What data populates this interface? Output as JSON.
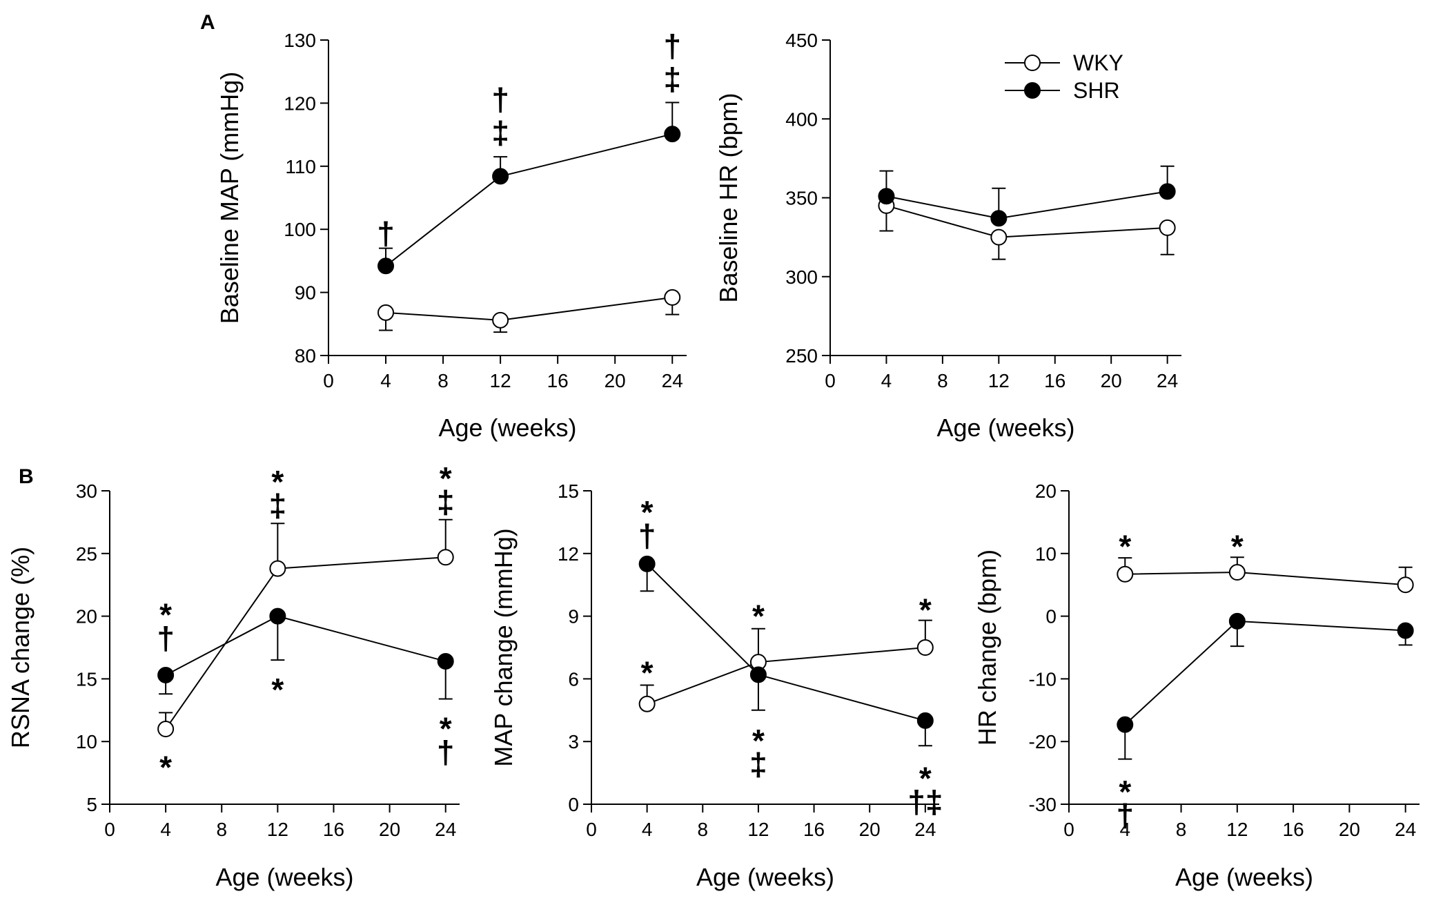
{
  "panel_labels": [
    "A",
    "B"
  ],
  "legend": {
    "wky": {
      "label": "WKY",
      "marker": "open-circle"
    },
    "shr": {
      "label": "SHR",
      "marker": "filled-circle"
    }
  },
  "colors": {
    "line": "#000000",
    "open_fill": "#ffffff",
    "filled_fill": "#000000"
  },
  "chart_data": [
    {
      "type": "line",
      "id": "A-left",
      "panel": "A",
      "ylabel": "Baseline MAP (mmHg)",
      "xlabel": "Age (weeks)",
      "xlim": [
        0,
        25
      ],
      "xticks": [
        0,
        4,
        8,
        12,
        16,
        20,
        24
      ],
      "ylim": [
        80,
        130
      ],
      "yticks": [
        80,
        90,
        100,
        110,
        120,
        130
      ],
      "x": [
        4,
        12,
        24
      ],
      "series": [
        {
          "name": "WKY",
          "values": [
            86.8,
            85.6,
            89.2
          ],
          "errors": [
            2.8,
            1.9,
            2.7
          ],
          "error_dir": "down",
          "marker": "open"
        },
        {
          "name": "SHR",
          "values": [
            94.2,
            108.4,
            115.1
          ],
          "errors": [
            2.8,
            3.1,
            5.0
          ],
          "error_dir": "up",
          "marker": "filled"
        }
      ],
      "annotations": [
        {
          "x": 4,
          "y": 96.5,
          "stack": [
            "†"
          ],
          "dir": "up"
        },
        {
          "x": 12,
          "y": 112.5,
          "stack": [
            "†",
            "‡"
          ],
          "dir": "up"
        },
        {
          "x": 24,
          "y": 121,
          "stack": [
            "†",
            "‡"
          ],
          "dir": "up"
        }
      ]
    },
    {
      "type": "line",
      "id": "A-right",
      "panel": "A",
      "ylabel": "Baseline HR (bpm)",
      "xlabel": "Age (weeks)",
      "xlim": [
        0,
        25
      ],
      "xticks": [
        0,
        4,
        8,
        12,
        16,
        20,
        24
      ],
      "ylim": [
        250,
        450
      ],
      "yticks": [
        250,
        300,
        350,
        400,
        450
      ],
      "x": [
        4,
        12,
        24
      ],
      "series": [
        {
          "name": "WKY",
          "values": [
            345,
            325,
            331
          ],
          "errors": [
            16,
            14,
            17
          ],
          "error_dir": "down",
          "marker": "open"
        },
        {
          "name": "SHR",
          "values": [
            351,
            337,
            354
          ],
          "errors": [
            16,
            19,
            16
          ],
          "error_dir": "up",
          "marker": "filled"
        }
      ],
      "annotations": [],
      "show_legend": true
    },
    {
      "type": "line",
      "id": "B-left",
      "panel": "B",
      "ylabel": "RSNA change (%)",
      "xlabel": "Age (weeks)",
      "xlim": [
        0,
        25
      ],
      "xticks": [
        0,
        4,
        8,
        12,
        16,
        20,
        24
      ],
      "ylim": [
        5,
        30
      ],
      "yticks": [
        5,
        10,
        15,
        20,
        25,
        30
      ],
      "x": [
        4,
        12,
        24
      ],
      "series": [
        {
          "name": "WKY",
          "values": [
            11.0,
            23.8,
            24.7
          ],
          "errors": [
            1.3,
            3.6,
            3.0
          ],
          "error_dir": "up",
          "marker": "open"
        },
        {
          "name": "SHR",
          "values": [
            15.3,
            20.0,
            16.4
          ],
          "errors": [
            1.5,
            3.5,
            3.0
          ],
          "error_dir": "down",
          "marker": "filled"
        }
      ],
      "annotations": [
        {
          "x": 4,
          "y": 16.8,
          "stack": [
            "*",
            "†"
          ],
          "dir": "up"
        },
        {
          "x": 4,
          "y": 10.2,
          "stack": [
            "*"
          ],
          "dir": "down"
        },
        {
          "x": 12,
          "y": 27.4,
          "stack": [
            "*",
            "‡"
          ],
          "dir": "up"
        },
        {
          "x": 12,
          "y": 16.4,
          "stack": [
            "*"
          ],
          "dir": "down"
        },
        {
          "x": 24,
          "y": 27.7,
          "stack": [
            "*",
            "‡"
          ],
          "dir": "up"
        },
        {
          "x": 24,
          "y": 13.3,
          "stack": [
            "*",
            "†"
          ],
          "dir": "down"
        }
      ]
    },
    {
      "type": "line",
      "id": "B-middle",
      "panel": "B",
      "ylabel": "MAP change (mmHg)",
      "xlabel": "Age (weeks)",
      "xlim": [
        0,
        25
      ],
      "xticks": [
        0,
        4,
        8,
        12,
        16,
        20,
        24
      ],
      "ylim": [
        0,
        15
      ],
      "yticks": [
        0,
        3,
        6,
        9,
        12,
        15
      ],
      "x": [
        4,
        12,
        24
      ],
      "series": [
        {
          "name": "WKY",
          "values": [
            4.8,
            6.8,
            7.5
          ],
          "errors": [
            0.9,
            1.6,
            1.3
          ],
          "error_dir": "up",
          "marker": "open"
        },
        {
          "name": "SHR",
          "values": [
            11.5,
            6.2,
            4.0
          ],
          "errors": [
            1.3,
            1.7,
            1.2
          ],
          "error_dir": "down",
          "marker": "filled"
        }
      ],
      "annotations": [
        {
          "x": 4,
          "y": 12.0,
          "stack": [
            "*",
            "†"
          ],
          "dir": "up"
        },
        {
          "x": 4,
          "y": 5.9,
          "stack": [
            "*"
          ],
          "dir": "up"
        },
        {
          "x": 12,
          "y": 8.6,
          "stack": [
            "*"
          ],
          "dir": "up"
        },
        {
          "x": 12,
          "y": 4.4,
          "stack": [
            "*",
            "‡"
          ],
          "dir": "down"
        },
        {
          "x": 24,
          "y": 8.9,
          "stack": [
            "*"
          ],
          "dir": "up"
        },
        {
          "x": 24,
          "y": 2.6,
          "stack": [
            "*",
            "†‡"
          ],
          "dir": "down"
        }
      ]
    },
    {
      "type": "line",
      "id": "B-right",
      "panel": "B",
      "ylabel": "HR change (bpm)",
      "xlabel": "Age (weeks)",
      "xlim": [
        0,
        25
      ],
      "xticks": [
        0,
        4,
        8,
        12,
        16,
        20,
        24
      ],
      "ylim": [
        -30,
        20
      ],
      "yticks": [
        -30,
        -20,
        -10,
        0,
        10,
        20
      ],
      "x": [
        4,
        12,
        24
      ],
      "series": [
        {
          "name": "WKY",
          "values": [
            6.7,
            7.0,
            5.0
          ],
          "errors": [
            2.6,
            2.4,
            2.8
          ],
          "error_dir": "up",
          "marker": "open"
        },
        {
          "name": "SHR",
          "values": [
            -17.3,
            -0.8,
            -2.3
          ],
          "errors": [
            5.5,
            4.0,
            2.3
          ],
          "error_dir": "down",
          "marker": "filled"
        }
      ],
      "annotations": [
        {
          "x": 4,
          "y": 9.8,
          "stack": [
            "*"
          ],
          "dir": "up"
        },
        {
          "x": 12,
          "y": 9.8,
          "stack": [
            "*"
          ],
          "dir": "up"
        },
        {
          "x": 4,
          "y": -23.5,
          "stack": [
            "*",
            "†"
          ],
          "dir": "down"
        }
      ]
    }
  ]
}
